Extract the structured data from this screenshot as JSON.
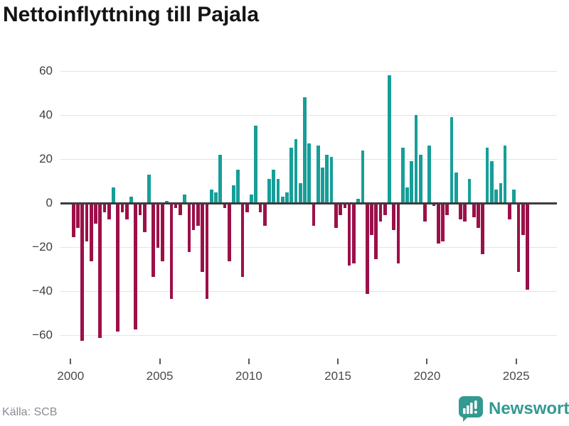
{
  "title": "Nettoinflyttning till Pajala",
  "footer": {
    "source": "Källa: SCB",
    "brand": "Newsworthy"
  },
  "colors": {
    "positive": "#179e99",
    "negative": "#9c1049",
    "brand": "#339a91"
  },
  "y_axis": {
    "tick_values": [
      60,
      40,
      20,
      0,
      -20,
      -40,
      -60
    ],
    "tick_labels": [
      "60",
      "40",
      "20",
      "0",
      "−20",
      "−40",
      "−60"
    ]
  },
  "x_axis": {
    "tick_years": [
      2000,
      2005,
      2010,
      2015,
      2020,
      2025
    ],
    "tick_labels": [
      "2000",
      "2005",
      "2010",
      "2015",
      "2020",
      "2025"
    ]
  },
  "chart_data": {
    "type": "bar",
    "title": "Nettoinflyttning till Pajala",
    "xlabel": "",
    "ylabel": "",
    "ylim": [
      -65,
      62
    ],
    "grid": "horizontal",
    "legend": "none",
    "source": "SCB",
    "x": [
      "2000Q1",
      "2000Q2",
      "2000Q3",
      "2000Q4",
      "2001Q1",
      "2001Q2",
      "2001Q3",
      "2001Q4",
      "2002Q1",
      "2002Q2",
      "2002Q3",
      "2002Q4",
      "2003Q1",
      "2003Q2",
      "2003Q3",
      "2003Q4",
      "2004Q1",
      "2004Q2",
      "2004Q3",
      "2004Q4",
      "2005Q1",
      "2005Q2",
      "2005Q3",
      "2005Q4",
      "2006Q1",
      "2006Q2",
      "2006Q3",
      "2006Q4",
      "2007Q1",
      "2007Q2",
      "2007Q3",
      "2007Q4",
      "2008Q1",
      "2008Q2",
      "2008Q3",
      "2008Q4",
      "2009Q1",
      "2009Q2",
      "2009Q3",
      "2009Q4",
      "2010Q1",
      "2010Q2",
      "2010Q3",
      "2010Q4",
      "2011Q1",
      "2011Q2",
      "2011Q3",
      "2011Q4",
      "2012Q1",
      "2012Q2",
      "2012Q3",
      "2012Q4",
      "2013Q1",
      "2013Q2",
      "2013Q3",
      "2013Q4",
      "2014Q1",
      "2014Q2",
      "2014Q3",
      "2014Q4",
      "2015Q1",
      "2015Q2",
      "2015Q3",
      "2015Q4",
      "2016Q1",
      "2016Q2",
      "2016Q3",
      "2016Q4",
      "2017Q1",
      "2017Q2",
      "2017Q3",
      "2017Q4",
      "2018Q1",
      "2018Q2",
      "2018Q3",
      "2018Q4",
      "2019Q1",
      "2019Q2",
      "2019Q3",
      "2019Q4",
      "2020Q1",
      "2020Q2",
      "2020Q3",
      "2020Q4",
      "2021Q1",
      "2021Q2",
      "2021Q3",
      "2021Q4",
      "2022Q1",
      "2022Q2",
      "2022Q3",
      "2022Q4",
      "2023Q1",
      "2023Q2",
      "2023Q3",
      "2023Q4",
      "2024Q1",
      "2024Q2",
      "2024Q3",
      "2024Q4",
      "2025Q1",
      "2025Q2",
      "2025Q3"
    ],
    "values": [
      -15,
      -11,
      -62,
      -17,
      -26,
      -9,
      -61,
      -4,
      -7,
      7,
      -58,
      -4,
      -7,
      3,
      -57,
      -5,
      -13,
      13,
      -33,
      -20,
      -26,
      1,
      -43,
      -2,
      -5,
      4,
      -22,
      -12,
      -10,
      -31,
      -43,
      6,
      5,
      22,
      -2,
      -26,
      8,
      15,
      -33,
      -4,
      4,
      35,
      -4,
      -10,
      11,
      15,
      11,
      3,
      5,
      25,
      29,
      9,
      48,
      27,
      -10,
      26,
      16,
      22,
      21,
      -11,
      -5,
      -2,
      -28,
      -27,
      2,
      24,
      -41,
      -14,
      -25,
      -8,
      -5,
      58,
      -12,
      -27,
      25,
      7,
      19,
      40,
      22,
      -8,
      26,
      -1,
      -18,
      -17,
      -5,
      39,
      14,
      -7,
      -8,
      11,
      -6,
      -11,
      -23,
      25,
      19,
      6,
      9,
      26,
      -7,
      6,
      -31,
      -14,
      -39
    ]
  }
}
